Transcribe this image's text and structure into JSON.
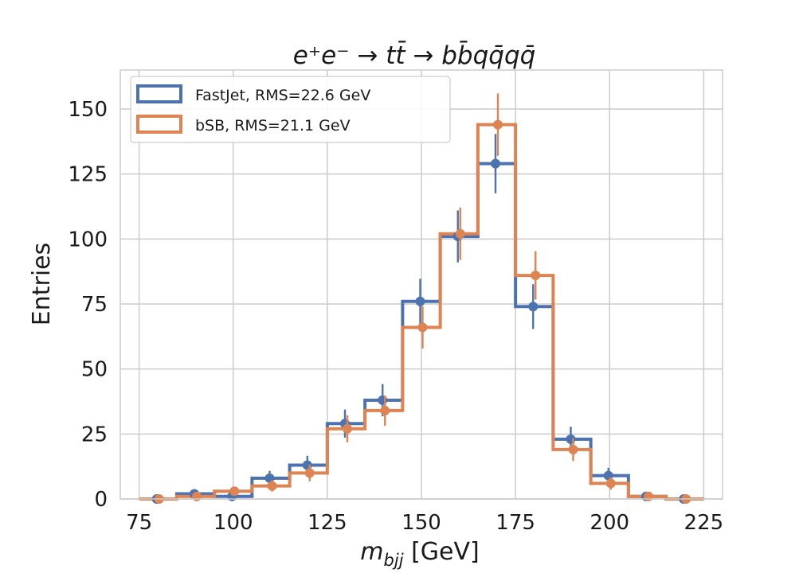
{
  "chart_data": {
    "type": "histogram",
    "title": "e⁺e⁻ → tt̄ → bb̄qq̄qq̄",
    "xlabel_var": "m",
    "xlabel_sub": "bjj",
    "xlabel_unit": "[GeV]",
    "ylabel": "Entries",
    "xlim": [
      70,
      230
    ],
    "ylim": [
      0,
      165
    ],
    "xticks": [
      75,
      100,
      125,
      150,
      175,
      200,
      225
    ],
    "yticks": [
      0,
      25,
      50,
      75,
      100,
      125,
      150
    ],
    "grid": true,
    "legend_position": "top-left",
    "bin_edges": [
      75,
      85,
      95,
      105,
      115,
      125,
      135,
      145,
      155,
      165,
      175,
      185,
      195,
      205,
      215,
      225
    ],
    "bin_centers": [
      80,
      90,
      100,
      110,
      120,
      130,
      140,
      150,
      160,
      170,
      180,
      190,
      200,
      210,
      220
    ],
    "series": [
      {
        "name": "FastJet, RMS=22.6 GeV",
        "color": "#4c72b0",
        "values": [
          0,
          2,
          1,
          8,
          13,
          29,
          38,
          76,
          101,
          129,
          74,
          23,
          9,
          1,
          0
        ],
        "errors": [
          0,
          1.4,
          1,
          2.8,
          3.6,
          5.4,
          6.2,
          8.7,
          10,
          11.4,
          8.6,
          4.8,
          3,
          1,
          0
        ]
      },
      {
        "name": "bSB, RMS=21.1 GeV",
        "color": "#dd8452",
        "values": [
          0,
          1,
          3,
          5,
          10,
          27,
          34,
          66,
          102,
          144,
          86,
          19,
          6,
          1,
          0
        ],
        "errors": [
          0,
          1,
          1.7,
          2.2,
          3.2,
          5.2,
          5.8,
          8.1,
          10.1,
          12,
          9.3,
          4.4,
          2.4,
          1,
          0
        ]
      }
    ]
  }
}
